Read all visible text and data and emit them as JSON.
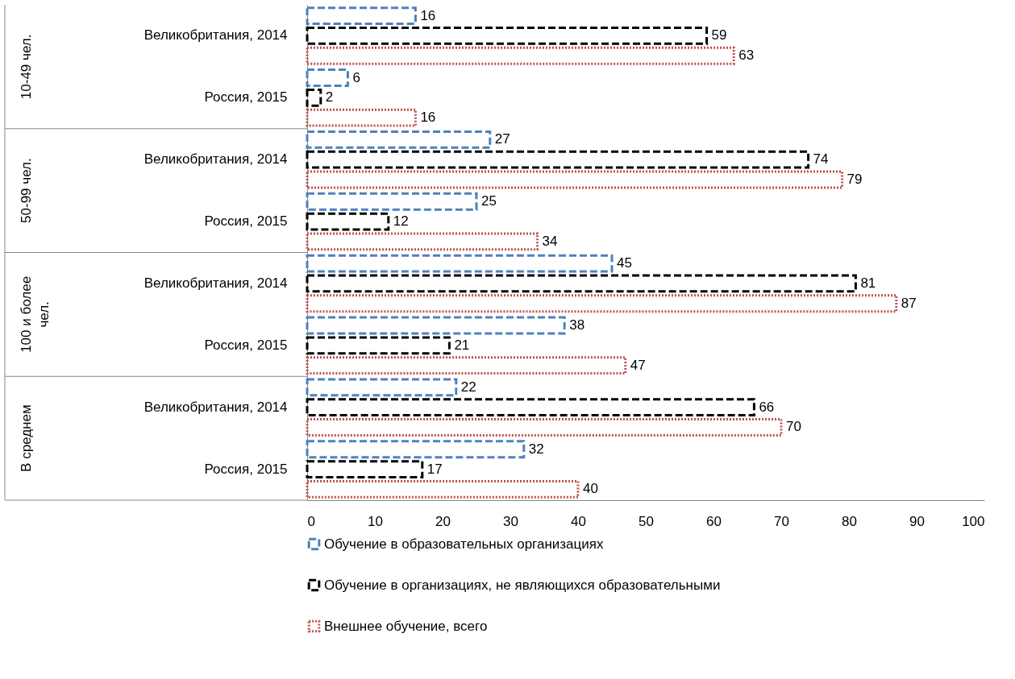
{
  "chart_data": {
    "type": "bar",
    "orientation": "horizontal",
    "categories": [
      "Великобритания, 2014",
      "Россия, 2015",
      "Великобритания, 2014",
      "Россия, 2015",
      "Великобритания, 2014",
      "Россия, 2015",
      "Великобритания, 2014",
      "Россия, 2015"
    ],
    "series": [
      {
        "name": "Обучение в образовательных организациях",
        "color": "#4f81bd",
        "line_style": "dashed",
        "values": [
          16,
          6,
          27,
          25,
          45,
          38,
          22,
          32
        ]
      },
      {
        "name": "Обучение в организациях, не являющихся образовательными",
        "color": "#000000",
        "line_style": "dashed",
        "values": [
          59,
          2,
          74,
          12,
          81,
          21,
          66,
          17
        ]
      },
      {
        "name": "Внешнее обучение, всего",
        "color": "#c0504d",
        "line_style": "dotted",
        "values": [
          63,
          16,
          79,
          34,
          87,
          47,
          70,
          40
        ]
      }
    ],
    "annotations": [
      "10-49 чел.",
      "50-99 чел.",
      "100 и более чел.",
      "В среднем"
    ],
    "xlim": [
      0,
      100
    ],
    "xticks": [
      0,
      10,
      20,
      30,
      40,
      50,
      60,
      70,
      80,
      90,
      100
    ],
    "data_labels": true,
    "legend": "bottom",
    "grid": false
  }
}
